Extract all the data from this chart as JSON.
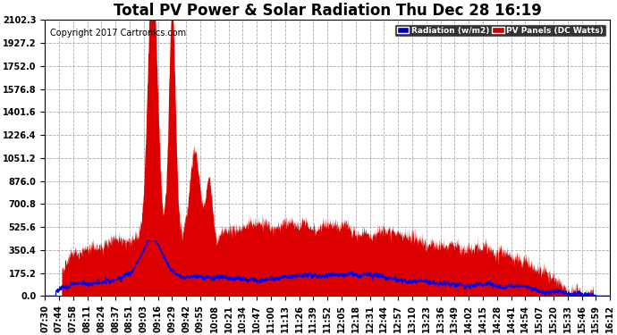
{
  "title": "Total PV Power & Solar Radiation Thu Dec 28 16:19",
  "copyright": "Copyright 2017 Cartronics.com",
  "legend_labels": [
    "Radiation (w/m2)",
    "PV Panels (DC Watts)"
  ],
  "legend_colors_bg": [
    "#0000bb",
    "#cc0000"
  ],
  "bg_color": "#ffffff",
  "plot_bg_color": "#ffffff",
  "grid_color": "#aaaaaa",
  "fill_color": "#dd0000",
  "line_color": "#0000ee",
  "y_ticks": [
    0.0,
    175.2,
    350.4,
    525.6,
    700.8,
    876.0,
    1051.2,
    1226.4,
    1401.6,
    1576.8,
    1752.0,
    1927.2,
    2102.3
  ],
  "x_tick_labels": [
    "07:30",
    "07:44",
    "07:58",
    "08:11",
    "08:24",
    "08:37",
    "08:51",
    "09:03",
    "09:16",
    "09:29",
    "09:42",
    "09:55",
    "10:08",
    "10:21",
    "10:34",
    "10:47",
    "11:00",
    "11:13",
    "11:26",
    "11:39",
    "11:52",
    "12:05",
    "12:18",
    "12:31",
    "12:44",
    "12:57",
    "13:10",
    "13:23",
    "13:36",
    "13:49",
    "14:02",
    "14:15",
    "14:28",
    "14:41",
    "14:54",
    "15:07",
    "15:20",
    "15:33",
    "15:46",
    "15:59",
    "16:12"
  ],
  "y_max": 2102.3,
  "title_fontsize": 12,
  "tick_fontsize": 7,
  "copyright_fontsize": 7
}
